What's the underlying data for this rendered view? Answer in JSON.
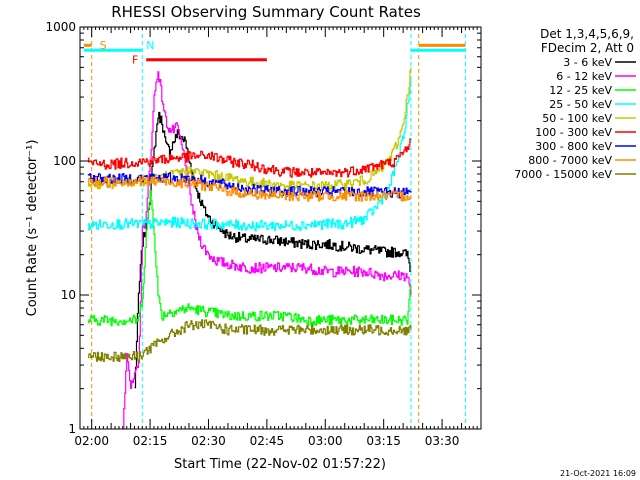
{
  "chart_data": {
    "type": "line",
    "title": "RHESSI Observing Summary Count Rates",
    "xlabel": "Start Time (22-Nov-02 01:57:22)",
    "ylabel": "Count Rate (s⁻¹ detector⁻¹)",
    "y_scale": "log",
    "ylim": [
      1,
      1000
    ],
    "x_unit": "minutes after 02:00 UT",
    "xlim": [
      -3,
      100
    ],
    "x_ticks": [
      0,
      15,
      30,
      45,
      60,
      75,
      90
    ],
    "x_tick_labels": [
      "02:00",
      "02:15",
      "02:30",
      "02:45",
      "03:00",
      "03:15",
      "03:30"
    ],
    "y_ticks": [
      1,
      10,
      100,
      1000
    ],
    "y_tick_labels": [
      "1",
      "10",
      "100",
      "1000"
    ],
    "legend_header": [
      "Det 1,3,4,5,6,9,",
      "FDecim 2, Att 0"
    ],
    "legend_position": "right, outside plot",
    "timestamp": "21-Oct-2021 16:09",
    "annotations": [
      {
        "label": "S",
        "color": "#ff8c00",
        "x": 1
      },
      {
        "label": "N",
        "color": "#00ffff",
        "x": 13
      },
      {
        "label": "F",
        "color": "#ff0000",
        "x": 13
      }
    ],
    "flag_bars": [
      {
        "name": "saa",
        "color": "#ff8c00",
        "x": [
          -2,
          0
        ],
        "y": 730
      },
      {
        "name": "night",
        "color": "#00ffff",
        "x": [
          -2,
          13
        ],
        "y": 670
      },
      {
        "name": "night",
        "color": "#00ffff",
        "x": [
          82,
          96
        ],
        "y": 670
      },
      {
        "name": "saa",
        "color": "#ff8c00",
        "x": [
          84,
          96
        ],
        "y": 730
      },
      {
        "name": "flare",
        "color": "#ff0000",
        "x": [
          14,
          45
        ],
        "y": 570
      }
    ],
    "vlines": [
      {
        "x": 0,
        "color": "#ff8c00"
      },
      {
        "x": 13,
        "color": "#00ffff"
      },
      {
        "x": 82,
        "color": "#00ffff"
      },
      {
        "x": 84,
        "color": "#ff8c00"
      },
      {
        "x": 96,
        "color": "#00ffff"
      }
    ],
    "series": [
      {
        "name": "3 - 6 keV",
        "color": "#000000",
        "x": [
          11,
          12,
          13,
          14,
          15,
          16,
          17,
          18,
          19,
          20,
          21,
          22,
          23,
          24,
          25,
          26,
          27,
          28,
          29,
          30,
          32,
          35,
          40,
          45,
          50,
          55,
          60,
          65,
          70,
          75,
          79,
          81,
          82
        ],
        "y": [
          2,
          10,
          25,
          33,
          60,
          120,
          220,
          200,
          130,
          120,
          140,
          160,
          150,
          140,
          100,
          80,
          60,
          50,
          42,
          38,
          33,
          28,
          26,
          26,
          25,
          24,
          24,
          23,
          22,
          21,
          21,
          20,
          15
        ]
      },
      {
        "name": "6 - 12 keV",
        "color": "#ff00ff",
        "x": [
          8,
          9,
          10,
          12,
          13,
          14,
          15,
          16,
          17,
          18,
          19,
          20,
          21,
          22,
          23,
          24,
          25,
          26,
          27,
          28,
          29,
          30,
          32,
          35,
          40,
          45,
          50,
          55,
          60,
          65,
          70,
          75,
          79,
          81,
          82
        ],
        "y": [
          1,
          4,
          2,
          3,
          30,
          40,
          100,
          300,
          480,
          300,
          200,
          170,
          170,
          180,
          130,
          100,
          60,
          42,
          30,
          25,
          22,
          20,
          18,
          17,
          16,
          16,
          16,
          16,
          15,
          15,
          15,
          14,
          14,
          14,
          10
        ]
      },
      {
        "name": "12 - 25 keV",
        "color": "#00ff00",
        "x": [
          -1,
          5,
          10,
          12,
          13,
          14,
          15,
          16,
          17,
          18,
          20,
          25,
          30,
          35,
          40,
          45,
          50,
          55,
          60,
          65,
          70,
          75,
          79,
          81,
          82
        ],
        "y": [
          6.5,
          6.5,
          6.5,
          6.5,
          10,
          30,
          60,
          30,
          10,
          7,
          7.5,
          8,
          7.5,
          7,
          7,
          7,
          7,
          6.5,
          6.5,
          6.5,
          6.5,
          6.5,
          6.5,
          6.5,
          12
        ]
      },
      {
        "name": "25 - 50 keV",
        "color": "#00ffff",
        "x": [
          -1,
          5,
          10,
          12,
          15,
          20,
          30,
          40,
          50,
          60,
          65,
          70,
          73,
          76,
          78,
          80,
          81,
          82
        ],
        "y": [
          33,
          34,
          34,
          34,
          34,
          35,
          34,
          33,
          33,
          34,
          34,
          37,
          45,
          60,
          90,
          150,
          250,
          400
        ]
      },
      {
        "name": "50 - 100 keV",
        "color": "#c8c800",
        "x": [
          -1,
          5,
          10,
          15,
          20,
          25,
          30,
          35,
          40,
          45,
          50,
          55,
          60,
          65,
          70,
          74,
          77,
          79,
          80,
          81,
          82
        ],
        "y": [
          68,
          68,
          70,
          72,
          78,
          85,
          80,
          75,
          70,
          68,
          65,
          65,
          65,
          67,
          72,
          85,
          110,
          150,
          200,
          300,
          500
        ]
      },
      {
        "name": "100 - 300 keV",
        "color": "#ff0000",
        "x": [
          -1,
          0,
          5,
          10,
          15,
          20,
          25,
          30,
          35,
          40,
          45,
          50,
          55,
          60,
          65,
          70,
          75,
          78,
          80,
          82
        ],
        "y": [
          100,
          95,
          95,
          98,
          100,
          105,
          108,
          110,
          100,
          95,
          88,
          83,
          82,
          80,
          83,
          88,
          95,
          100,
          115,
          145
        ]
      },
      {
        "name": "300 - 800 keV",
        "color": "#0000ff",
        "x": [
          -1,
          5,
          10,
          15,
          20,
          25,
          30,
          35,
          40,
          45,
          50,
          55,
          60,
          65,
          70,
          75,
          80,
          82
        ],
        "y": [
          75,
          74,
          74,
          75,
          75,
          74,
          70,
          66,
          62,
          60,
          60,
          59,
          59,
          59,
          59,
          58,
          58,
          58
        ]
      },
      {
        "name": "800 - 7000 keV",
        "color": "#ff8c00",
        "x": [
          -1,
          5,
          10,
          15,
          20,
          25,
          30,
          35,
          40,
          45,
          50,
          55,
          60,
          65,
          70,
          75,
          80,
          82
        ],
        "y": [
          70,
          70,
          71,
          71,
          70,
          69,
          65,
          60,
          57,
          56,
          55,
          55,
          55,
          55,
          55,
          55,
          55,
          55
        ]
      },
      {
        "name": "7000 - 15000 keV",
        "color": "#808000",
        "x": [
          -1,
          5,
          10,
          12,
          15,
          20,
          25,
          30,
          35,
          40,
          45,
          50,
          55,
          60,
          65,
          70,
          75,
          80,
          82
        ],
        "y": [
          3.5,
          3.5,
          3.5,
          3.5,
          4,
          5,
          6,
          6,
          5.5,
          5.5,
          5.5,
          5.5,
          5.5,
          5.5,
          5.5,
          5.5,
          5.5,
          5.5,
          5.5
        ]
      }
    ]
  }
}
